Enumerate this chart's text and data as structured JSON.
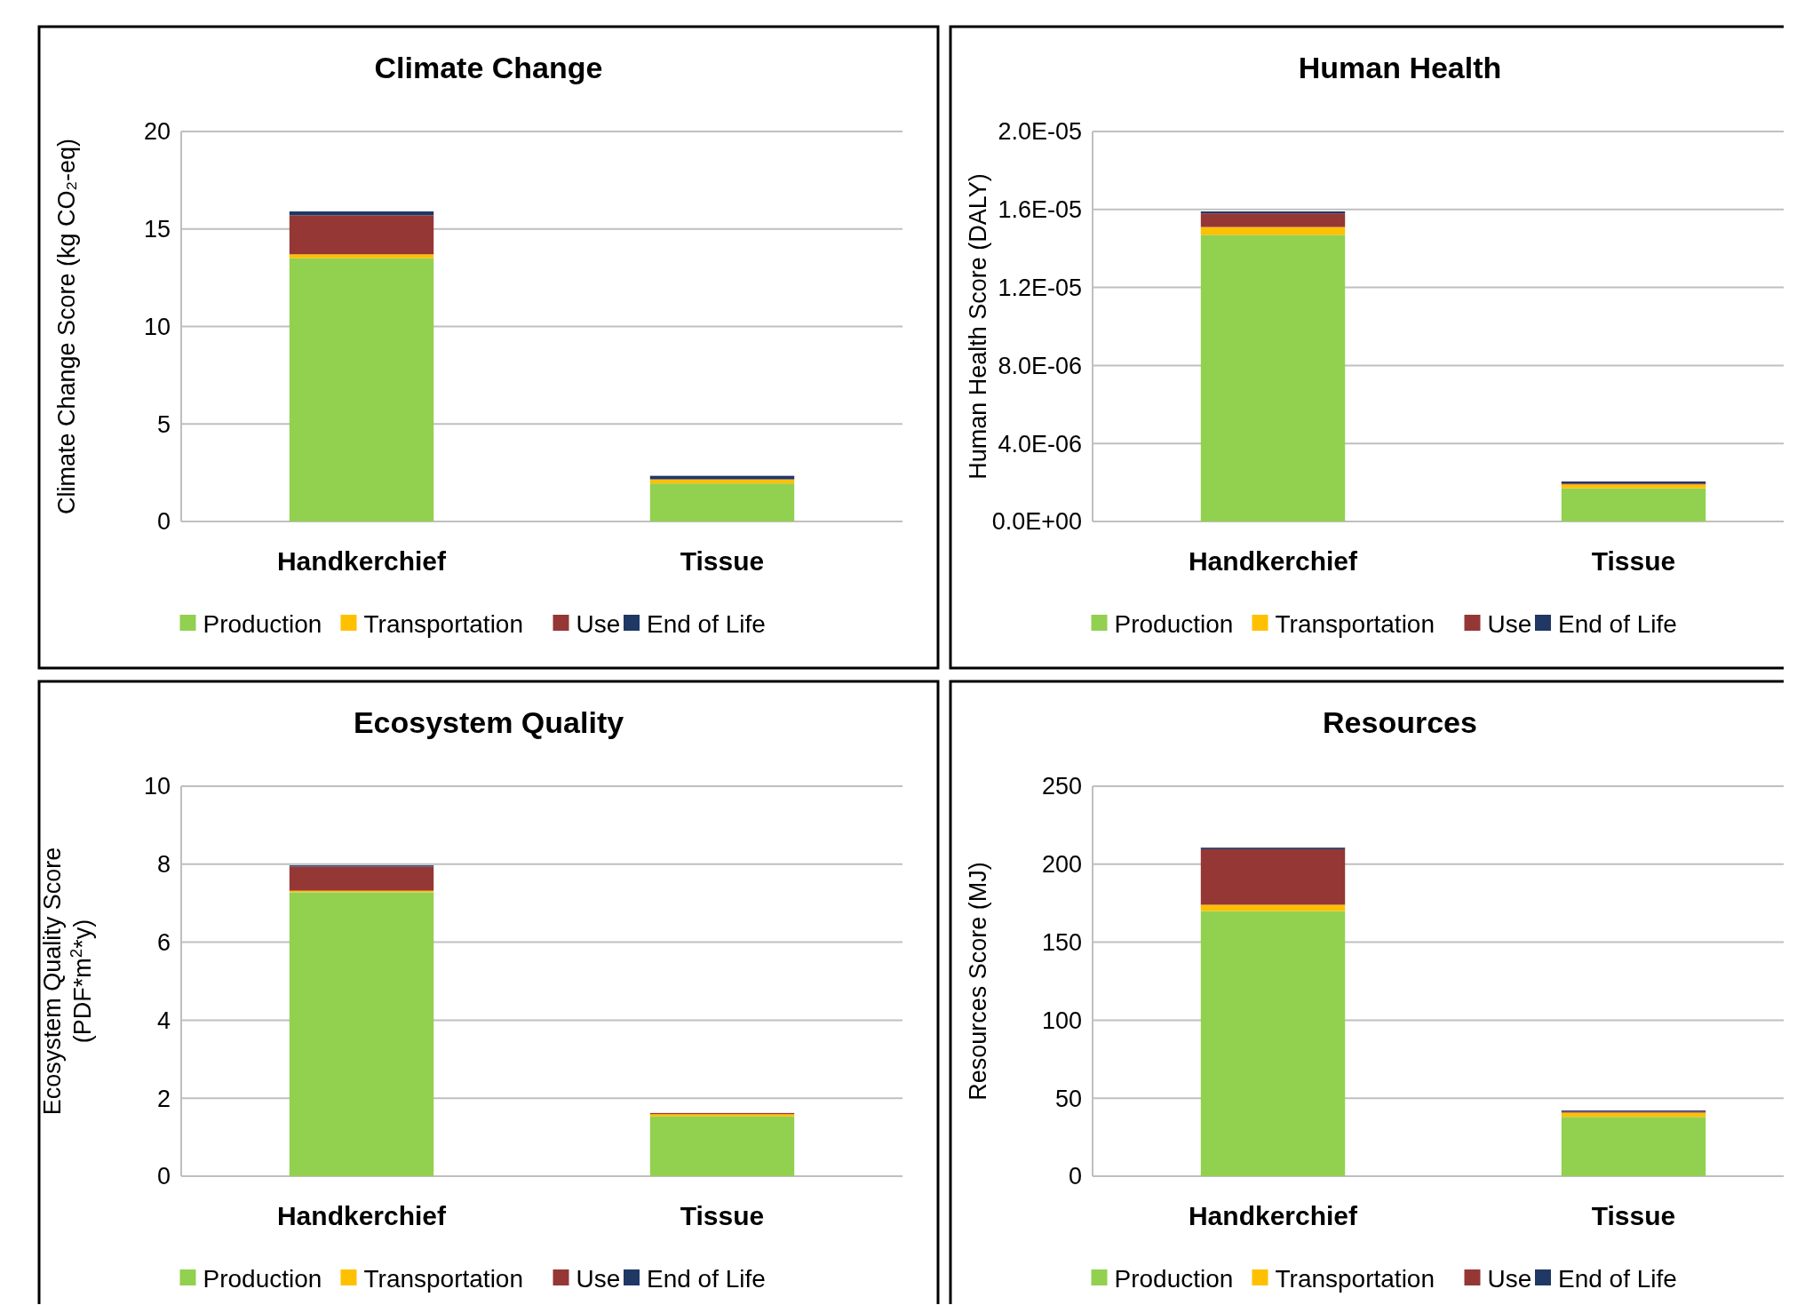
{
  "chart_data": [
    {
      "type": "bar",
      "stacked": true,
      "title": "Climate Change",
      "ylabel": "Climate Change Score  (kg CO₂-eq)",
      "categories": [
        "Handkerchief",
        "Tissue"
      ],
      "ylim": [
        0,
        20
      ],
      "yticks": [
        0,
        5,
        10,
        15,
        20
      ],
      "grid": "y",
      "legend": "bottom",
      "series": [
        {
          "name": "Production",
          "color": "#92d050",
          "values": [
            13.5,
            1.95
          ]
        },
        {
          "name": "Transportation",
          "color": "#ffc000",
          "values": [
            0.2,
            0.2
          ]
        },
        {
          "name": "Use",
          "color": "#953735",
          "values": [
            2.0,
            0.02
          ]
        },
        {
          "name": "End of Life",
          "color": "#1f3864",
          "values": [
            0.2,
            0.17
          ]
        }
      ]
    },
    {
      "type": "bar",
      "stacked": true,
      "title": "Human Health",
      "ylabel": "Human Health Score  (DALY)",
      "categories": [
        "Handkerchief",
        "Tissue"
      ],
      "ylim": [
        0,
        2e-05
      ],
      "yticks": [
        {
          "value": 0,
          "label": "0.0E+00"
        },
        {
          "value": 4e-06,
          "label": "4.0E-06"
        },
        {
          "value": 8e-06,
          "label": "8.0E-06"
        },
        {
          "value": 1.2e-05,
          "label": "1.2E-05"
        },
        {
          "value": 1.6e-05,
          "label": "1.6E-05"
        },
        {
          "value": 2e-05,
          "label": "2.0E-05"
        }
      ],
      "grid": "y",
      "legend": "bottom",
      "series": [
        {
          "name": "Production",
          "color": "#92d050",
          "values": [
            1.47e-05,
            1.7e-06
          ]
        },
        {
          "name": "Transportation",
          "color": "#ffc000",
          "values": [
            4e-07,
            2e-07
          ]
        },
        {
          "name": "Use",
          "color": "#953735",
          "values": [
            7e-07,
            5e-08
          ]
        },
        {
          "name": "End of Life",
          "color": "#1f3864",
          "values": [
            1e-07,
            1e-07
          ]
        }
      ]
    },
    {
      "type": "bar",
      "stacked": true,
      "title": "Ecosystem Quality",
      "ylabel": "Ecosystem Quality Score\n(PDF*m$^{2}$*y)",
      "categories": [
        "Handkerchief",
        "Tissue"
      ],
      "ylim": [
        0,
        10
      ],
      "yticks": [
        0,
        2,
        4,
        6,
        8,
        10
      ],
      "grid": "y",
      "legend": "bottom",
      "series": [
        {
          "name": "Production",
          "color": "#92d050",
          "values": [
            7.28,
            1.53
          ]
        },
        {
          "name": "Transportation",
          "color": "#ffc000",
          "values": [
            0.04,
            0.06
          ]
        },
        {
          "name": "Use",
          "color": "#953735",
          "values": [
            0.62,
            0.03
          ]
        },
        {
          "name": "End of Life",
          "color": "#1f3864",
          "values": [
            0.03,
            null
          ]
        }
      ]
    },
    {
      "type": "bar",
      "stacked": true,
      "title": "Resources",
      "ylabel": "Resources Score  (MJ)",
      "categories": [
        "Handkerchief",
        "Tissue"
      ],
      "ylim": [
        0,
        250
      ],
      "yticks": [
        0,
        50,
        100,
        150,
        200,
        250
      ],
      "grid": "y",
      "legend": "bottom",
      "series": [
        {
          "name": "Production",
          "color": "#92d050",
          "values": [
            170,
            38
          ]
        },
        {
          "name": "Transportation",
          "color": "#ffc000",
          "values": [
            4,
            2.7
          ]
        },
        {
          "name": "Use",
          "color": "#953735",
          "values": [
            35.6,
            0.7
          ]
        },
        {
          "name": "End of Life",
          "color": "#1f3864",
          "values": [
            1,
            0.7
          ]
        }
      ]
    }
  ]
}
